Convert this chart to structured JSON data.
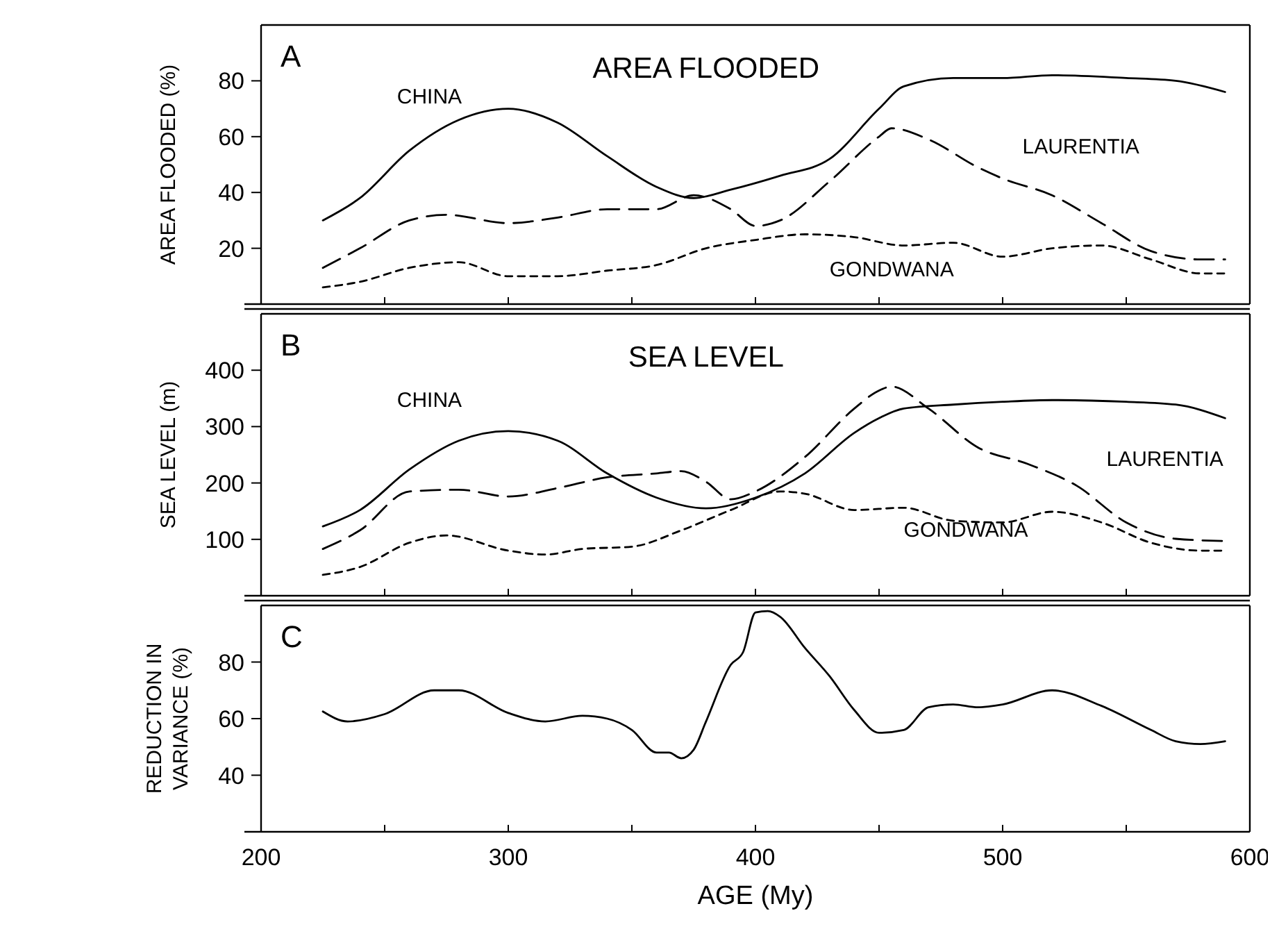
{
  "chart_data": [
    {
      "type": "line",
      "title": "AREA FLOODED",
      "ylabel": "AREA FLOODED (%)",
      "annotations": [
        "A"
      ],
      "xlim": [
        200,
        600
      ],
      "xticks": [
        200,
        {
          "value": 250,
          "label": null
        },
        300,
        {
          "value": 350,
          "label": null
        },
        400,
        {
          "value": 450,
          "label": null
        },
        500,
        {
          "value": 550,
          "label": null
        },
        600
      ],
      "ylim": [
        0,
        100
      ],
      "yticks": [
        20,
        40,
        60,
        80
      ],
      "tick_labels": "y",
      "grid": false,
      "x": [
        225,
        240,
        260,
        280,
        300,
        320,
        340,
        360,
        375,
        390,
        410,
        430,
        450,
        460,
        480,
        500,
        520,
        550,
        570,
        590
      ],
      "series": [
        {
          "name": "CHINA",
          "color": "#000000",
          "line_style": "solid",
          "values": [
            30,
            38,
            55,
            66,
            70,
            65,
            53,
            42,
            38,
            41,
            46,
            52,
            70,
            78,
            81,
            81,
            82,
            81,
            80,
            76
          ]
        },
        {
          "name": "LAURENTIA",
          "color": "#000000",
          "line_style": "dashed",
          "x": [
            225,
            240,
            260,
            275,
            300,
            320,
            340,
            360,
            375,
            390,
            400,
            410,
            430,
            450,
            455,
            470,
            490,
            500,
            520,
            540,
            560,
            580,
            590
          ],
          "values": [
            13,
            20,
            30,
            32,
            29,
            31,
            34,
            34,
            39,
            34,
            28,
            30,
            44,
            60,
            63,
            59,
            49,
            45,
            39,
            29,
            19,
            16,
            16
          ]
        },
        {
          "name": "GONDWANA",
          "color": "#000000",
          "line_style": "dotted",
          "values": [
            6,
            8,
            13,
            15,
            10,
            10,
            12,
            14,
            20,
            23,
            25,
            24,
            21,
            22,
            17,
            20,
            21,
            16,
            11,
            11
          ],
          "x": [
            225,
            240,
            260,
            280,
            300,
            320,
            340,
            360,
            380,
            400,
            420,
            440,
            460,
            480,
            500,
            520,
            540,
            560,
            580,
            590
          ]
        }
      ]
    },
    {
      "type": "line",
      "title": "SEA LEVEL",
      "ylabel": "SEA LEVEL (m)",
      "annotations": [
        "B"
      ],
      "xlim": [
        200,
        600
      ],
      "xticks": [
        200,
        {
          "value": 250,
          "label": null
        },
        300,
        {
          "value": 350,
          "label": null
        },
        400,
        {
          "value": 450,
          "label": null
        },
        500,
        {
          "value": 550,
          "label": null
        },
        600
      ],
      "ylim": [
        0,
        500
      ],
      "yticks": [
        100,
        200,
        300,
        400
      ],
      "tick_labels": "y",
      "grid": false,
      "x": [
        225,
        240,
        260,
        280,
        300,
        320,
        340,
        360,
        380,
        400,
        420,
        440,
        450,
        460,
        480,
        500,
        520,
        550,
        570,
        590
      ],
      "series": [
        {
          "name": "CHINA",
          "color": "#000000",
          "line_style": "solid",
          "values": [
            123,
            152,
            224,
            275,
            292,
            275,
            217,
            174,
            155,
            174,
            217,
            289,
            315,
            332,
            339,
            344,
            347,
            344,
            339,
            315
          ]
        },
        {
          "name": "LAURENTIA",
          "color": "#000000",
          "line_style": "dashed",
          "x": [
            225,
            240,
            260,
            280,
            300,
            320,
            340,
            360,
            370,
            380,
            390,
            400,
            420,
            440,
            450,
            455,
            470,
            490,
            510,
            530,
            550,
            570,
            590
          ],
          "values": [
            83,
            116,
            185,
            188,
            176,
            191,
            210,
            217,
            221,
            202,
            171,
            185,
            246,
            332,
            364,
            371,
            332,
            263,
            234,
            195,
            130,
            101,
            97
          ]
        },
        {
          "name": "GONDWANA",
          "color": "#000000",
          "line_style": "dotted",
          "x": [
            225,
            240,
            260,
            275,
            300,
            315,
            330,
            350,
            370,
            390,
            410,
            420,
            440,
            460,
            480,
            500,
            520,
            540,
            560,
            580,
            590
          ],
          "values": [
            37,
            51,
            94,
            107,
            80,
            73,
            83,
            87,
            116,
            152,
            185,
            181,
            152,
            156,
            133,
            130,
            149,
            130,
            94,
            80,
            80
          ]
        }
      ]
    },
    {
      "type": "line",
      "xlabel": "AGE (My)",
      "ylabel": "REDUCTION IN VARIANCE (%)",
      "annotations": [
        "C"
      ],
      "xlim": [
        200,
        600
      ],
      "xticks": [
        200,
        {
          "value": 250,
          "label": null
        },
        300,
        {
          "value": 350,
          "label": null
        },
        400,
        {
          "value": 450,
          "label": null
        },
        500,
        {
          "value": 550,
          "label": null
        },
        600
      ],
      "ylim": [
        20,
        100
      ],
      "yticks": [
        40,
        60,
        80
      ],
      "grid": false,
      "x": [
        225,
        235,
        250,
        270,
        280,
        300,
        315,
        330,
        340,
        350,
        360,
        365,
        370,
        375,
        380,
        390,
        395,
        400,
        405,
        410,
        420,
        430,
        440,
        450,
        460,
        470,
        480,
        490,
        500,
        520,
        540,
        560,
        570,
        580,
        590
      ],
      "series": [
        {
          "color": "#000000",
          "line_style": "solid",
          "values": [
            62.5,
            59,
            61.6,
            70,
            70,
            62,
            59,
            61,
            60,
            56,
            48,
            48,
            46,
            49,
            59,
            79,
            83.5,
            97.5,
            98,
            96,
            85,
            75,
            63,
            55,
            56,
            64,
            65,
            64,
            65,
            70,
            64.5,
            56,
            52,
            51,
            52
          ]
        }
      ]
    }
  ]
}
